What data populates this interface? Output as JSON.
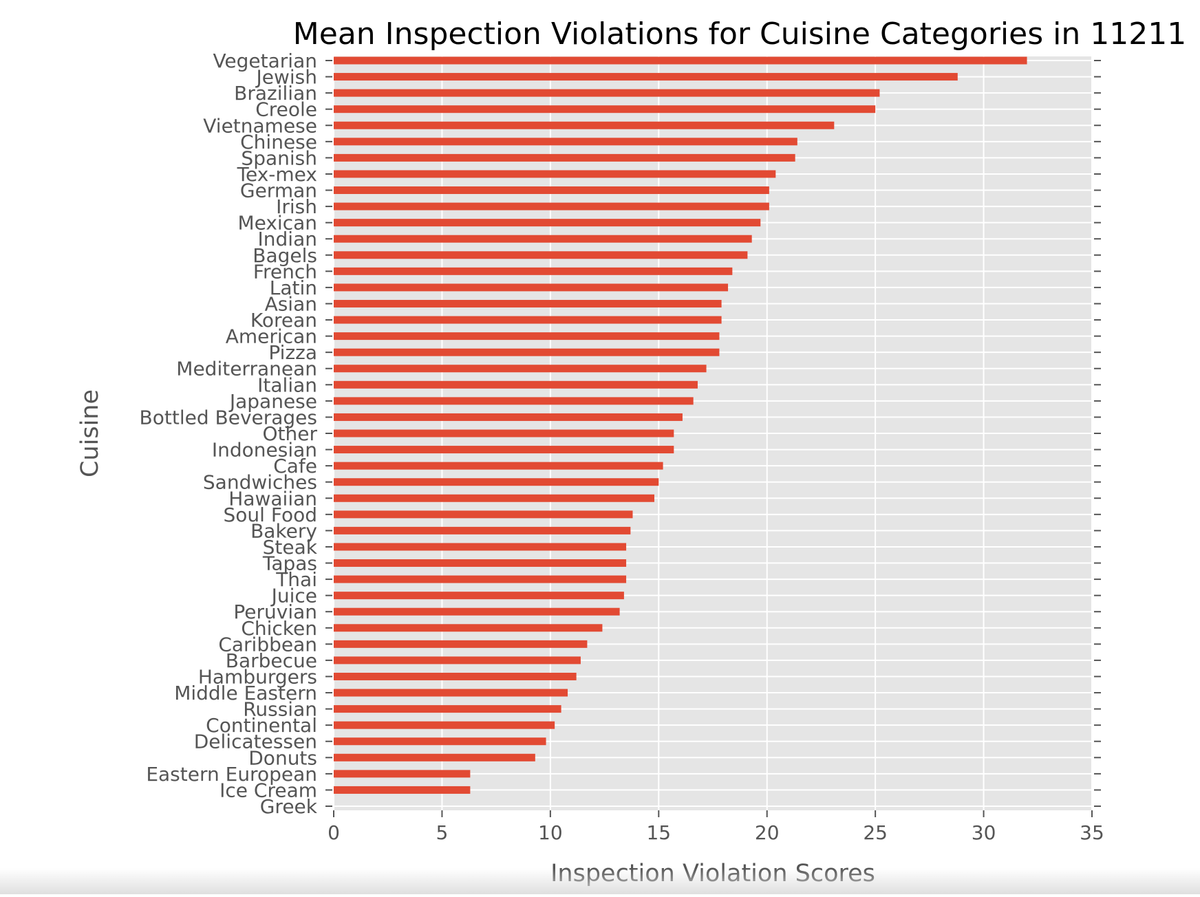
{
  "chart_data": {
    "type": "bar",
    "orientation": "horizontal",
    "title": "Mean Inspection Violations for Cuisine Categories in 11211",
    "xlabel": "Inspection Violation Scores",
    "ylabel": "Cuisine",
    "xlim": [
      0,
      35
    ],
    "xticks": [
      0,
      5,
      10,
      15,
      20,
      25,
      30,
      35
    ],
    "grid": true,
    "colors": {
      "bar": "#e24a33",
      "plot_bg": "#e5e5e5",
      "grid": "#ffffff",
      "text": "#555555",
      "title": "#000000"
    },
    "categories": [
      "Vegetarian",
      "Jewish",
      "Brazilian",
      "Creole",
      "Vietnamese",
      "Chinese",
      "Spanish",
      "Tex-mex",
      "German",
      "Irish",
      "Mexican",
      "Indian",
      "Bagels",
      "French",
      "Latin",
      "Asian",
      "Korean",
      "American",
      "Pizza",
      "Mediterranean",
      "Italian",
      "Japanese",
      "Bottled Beverages",
      "Other",
      "Indonesian",
      "Cafe",
      "Sandwiches",
      "Hawaiian",
      "Soul Food",
      "Bakery",
      "Steak",
      "Tapas",
      "Thai",
      "Juice",
      "Peruvian",
      "Chicken",
      "Caribbean",
      "Barbecue",
      "Hamburgers",
      "Middle Eastern",
      "Russian",
      "Continental",
      "Delicatessen",
      "Donuts",
      "Eastern European",
      "Ice Cream",
      "Greek"
    ],
    "values": [
      32.0,
      28.8,
      25.2,
      25.0,
      23.1,
      21.4,
      21.3,
      20.4,
      20.1,
      20.1,
      19.7,
      19.3,
      19.1,
      18.4,
      18.2,
      17.9,
      17.9,
      17.8,
      17.8,
      17.2,
      16.8,
      16.6,
      16.1,
      15.7,
      15.7,
      15.2,
      15.0,
      14.8,
      13.8,
      13.7,
      13.5,
      13.5,
      13.5,
      13.4,
      13.2,
      12.4,
      11.7,
      11.4,
      11.2,
      10.8,
      10.5,
      10.2,
      9.8,
      9.3,
      6.3,
      6.3,
      0.0
    ]
  }
}
